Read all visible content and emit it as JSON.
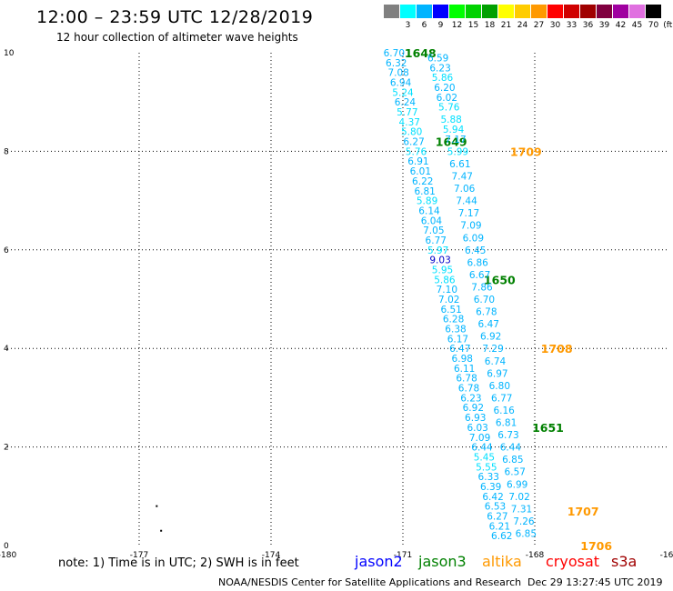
{
  "title": "12:00 – 23:59 UTC 12/28/2019",
  "subtitle": "12 hour collection of altimeter wave heights",
  "scale": {
    "unit": "(ft)",
    "bins": [
      {
        "label": "",
        "color": "#808080"
      },
      {
        "label": "3",
        "color": "#00ffff"
      },
      {
        "label": "6",
        "color": "#00b4ff"
      },
      {
        "label": "9",
        "color": "#0000ff"
      },
      {
        "label": "12",
        "color": "#00ff00"
      },
      {
        "label": "15",
        "color": "#00d200"
      },
      {
        "label": "18",
        "color": "#00a000"
      },
      {
        "label": "21",
        "color": "#ffff00"
      },
      {
        "label": "24",
        "color": "#ffcc00"
      },
      {
        "label": "27",
        "color": "#ff9900"
      },
      {
        "label": "30",
        "color": "#ff0000"
      },
      {
        "label": "33",
        "color": "#d00000"
      },
      {
        "label": "36",
        "color": "#a00000"
      },
      {
        "label": "39",
        "color": "#800040"
      },
      {
        "label": "42",
        "color": "#a000a0"
      },
      {
        "label": "45",
        "color": "#e070e0"
      },
      {
        "label": "70",
        "color": "#000000"
      }
    ]
  },
  "axes": {
    "x_ticks": [
      "-180",
      "-177",
      "-174",
      "-171",
      "-168",
      "-16"
    ],
    "y_ticks": [
      "0",
      "2",
      "4",
      "6",
      "8",
      "10"
    ],
    "lon_range": [
      -180,
      -165
    ],
    "lat_range": [
      0,
      10
    ],
    "grid": true
  },
  "note": "note: 1) Time is in UTC; 2) SWH is in feet",
  "legend": [
    {
      "name": "jason2",
      "color": "#0000ff"
    },
    {
      "name": "jason3",
      "color": "#008000"
    },
    {
      "name": "altika",
      "color": "#ff9900"
    },
    {
      "name": "cryosat",
      "color": "#ff0000"
    },
    {
      "name": "s3a",
      "color": "#a00000"
    }
  ],
  "credit": "NOAA/NESDIS Center for Satellite Applications and Research",
  "generated": "Dec 29 13:27:45 UTC 2019",
  "tracks": [
    {
      "satellite": "jason3",
      "time_labels": [
        {
          "text": "1648",
          "lon": -170.6,
          "lat": 10.0
        },
        {
          "text": "1649",
          "lon": -169.9,
          "lat": 8.2
        },
        {
          "text": "1650",
          "lon": -168.8,
          "lat": 5.4
        },
        {
          "text": "1651",
          "lon": -167.7,
          "lat": 2.4
        }
      ],
      "obs": [
        {
          "v": "6.70",
          "lon": -171.2,
          "lat": 10.0
        },
        {
          "v": "6.32",
          "lon": -171.15,
          "lat": 9.8
        },
        {
          "v": "7.08",
          "lon": -171.1,
          "lat": 9.6
        },
        {
          "v": "6.94",
          "lon": -171.05,
          "lat": 9.4
        },
        {
          "v": "5.24",
          "lon": -171.0,
          "lat": 9.2
        },
        {
          "v": "6.24",
          "lon": -170.95,
          "lat": 9.0
        },
        {
          "v": "5.77",
          "lon": -170.9,
          "lat": 8.8
        },
        {
          "v": "4.37",
          "lon": -170.85,
          "lat": 8.6
        },
        {
          "v": "5.80",
          "lon": -170.8,
          "lat": 8.4
        },
        {
          "v": "6.27",
          "lon": -170.75,
          "lat": 8.2
        },
        {
          "v": "5.76",
          "lon": -170.7,
          "lat": 8.0
        },
        {
          "v": "6.91",
          "lon": -170.65,
          "lat": 7.8
        },
        {
          "v": "6.01",
          "lon": -170.6,
          "lat": 7.6
        },
        {
          "v": "6.22",
          "lon": -170.55,
          "lat": 7.4
        },
        {
          "v": "6.81",
          "lon": -170.5,
          "lat": 7.2
        },
        {
          "v": "5.89",
          "lon": -170.45,
          "lat": 7.0
        },
        {
          "v": "6.14",
          "lon": -170.4,
          "lat": 6.8
        },
        {
          "v": "6.04",
          "lon": -170.35,
          "lat": 6.6
        },
        {
          "v": "7.05",
          "lon": -170.3,
          "lat": 6.4
        },
        {
          "v": "6.77",
          "lon": -170.25,
          "lat": 6.2
        },
        {
          "v": "5.97",
          "lon": -170.2,
          "lat": 6.0
        },
        {
          "v": "9.03",
          "lon": -170.15,
          "lat": 5.8
        },
        {
          "v": "5.95",
          "lon": -170.1,
          "lat": 5.6
        },
        {
          "v": "5.86",
          "lon": -170.05,
          "lat": 5.4
        },
        {
          "v": "7.10",
          "lon": -170.0,
          "lat": 5.2
        },
        {
          "v": "7.02",
          "lon": -169.95,
          "lat": 5.0
        },
        {
          "v": "6.51",
          "lon": -169.9,
          "lat": 4.8
        },
        {
          "v": "6.28",
          "lon": -169.85,
          "lat": 4.6
        },
        {
          "v": "6.38",
          "lon": -169.8,
          "lat": 4.4
        },
        {
          "v": "6.17",
          "lon": -169.75,
          "lat": 4.2
        },
        {
          "v": "6.47",
          "lon": -169.7,
          "lat": 4.0
        },
        {
          "v": "6.98",
          "lon": -169.65,
          "lat": 3.8
        },
        {
          "v": "6.11",
          "lon": -169.6,
          "lat": 3.6
        },
        {
          "v": "6.78",
          "lon": -169.55,
          "lat": 3.4
        },
        {
          "v": "6.78",
          "lon": -169.5,
          "lat": 3.2
        },
        {
          "v": "6.23",
          "lon": -169.45,
          "lat": 3.0
        },
        {
          "v": "6.92",
          "lon": -169.4,
          "lat": 2.8
        },
        {
          "v": "6.93",
          "lon": -169.35,
          "lat": 2.6
        },
        {
          "v": "6.03",
          "lon": -169.3,
          "lat": 2.4
        },
        {
          "v": "7.09",
          "lon": -169.25,
          "lat": 2.2
        },
        {
          "v": "6.44",
          "lon": -169.2,
          "lat": 2.0
        },
        {
          "v": "5.45",
          "lon": -169.15,
          "lat": 1.8
        },
        {
          "v": "5.55",
          "lon": -169.1,
          "lat": 1.6
        },
        {
          "v": "6.33",
          "lon": -169.05,
          "lat": 1.4
        },
        {
          "v": "6.39",
          "lon": -169.0,
          "lat": 1.2
        },
        {
          "v": "6.42",
          "lon": -168.95,
          "lat": 1.0
        },
        {
          "v": "6.53",
          "lon": -168.9,
          "lat": 0.8
        },
        {
          "v": "6.27",
          "lon": -168.85,
          "lat": 0.6
        },
        {
          "v": "6.21",
          "lon": -168.8,
          "lat": 0.4
        },
        {
          "v": "6.62",
          "lon": -168.75,
          "lat": 0.2
        }
      ]
    },
    {
      "satellite": "altika",
      "time_labels": [
        {
          "text": "1709",
          "lon": -168.2,
          "lat": 8.0
        },
        {
          "text": "1708",
          "lon": -167.5,
          "lat": 4.0
        },
        {
          "text": "1707",
          "lon": -166.9,
          "lat": 0.7
        },
        {
          "text": "1706",
          "lon": -166.6,
          "lat": 0.0
        }
      ],
      "obs": [
        {
          "v": "6.59",
          "lon": -170.2,
          "lat": 9.9
        },
        {
          "v": "6.23",
          "lon": -170.15,
          "lat": 9.7
        },
        {
          "v": "5.86",
          "lon": -170.1,
          "lat": 9.5
        },
        {
          "v": "6.20",
          "lon": -170.05,
          "lat": 9.3
        },
        {
          "v": "6.02",
          "lon": -170.0,
          "lat": 9.1
        },
        {
          "v": "5.76",
          "lon": -169.95,
          "lat": 8.9
        },
        {
          "v": "5.88",
          "lon": -169.9,
          "lat": 8.65
        },
        {
          "v": "5.94",
          "lon": -169.85,
          "lat": 8.45
        },
        {
          "v": "7.17",
          "lon": -169.8,
          "lat": 8.25
        },
        {
          "v": "5.99",
          "lon": -169.75,
          "lat": 8.0
        },
        {
          "v": "6.61",
          "lon": -169.7,
          "lat": 7.75
        },
        {
          "v": "7.47",
          "lon": -169.65,
          "lat": 7.5
        },
        {
          "v": "7.06",
          "lon": -169.6,
          "lat": 7.25
        },
        {
          "v": "7.44",
          "lon": -169.55,
          "lat": 7.0
        },
        {
          "v": "7.17",
          "lon": -169.5,
          "lat": 6.75
        },
        {
          "v": "7.09",
          "lon": -169.45,
          "lat": 6.5
        },
        {
          "v": "6.09",
          "lon": -169.4,
          "lat": 6.25
        },
        {
          "v": "6.45",
          "lon": -169.35,
          "lat": 6.0
        },
        {
          "v": "6.86",
          "lon": -169.3,
          "lat": 5.75
        },
        {
          "v": "6.67",
          "lon": -169.25,
          "lat": 5.5
        },
        {
          "v": "7.86",
          "lon": -169.2,
          "lat": 5.25
        },
        {
          "v": "6.70",
          "lon": -169.15,
          "lat": 5.0
        },
        {
          "v": "6.78",
          "lon": -169.1,
          "lat": 4.75
        },
        {
          "v": "6.47",
          "lon": -169.05,
          "lat": 4.5
        },
        {
          "v": "6.92",
          "lon": -169.0,
          "lat": 4.25
        },
        {
          "v": "7.29",
          "lon": -168.95,
          "lat": 4.0
        },
        {
          "v": "6.74",
          "lon": -168.9,
          "lat": 3.75
        },
        {
          "v": "6.97",
          "lon": -168.85,
          "lat": 3.5
        },
        {
          "v": "6.80",
          "lon": -168.8,
          "lat": 3.25
        },
        {
          "v": "6.77",
          "lon": -168.75,
          "lat": 3.0
        },
        {
          "v": "6.16",
          "lon": -168.7,
          "lat": 2.75
        },
        {
          "v": "6.81",
          "lon": -168.65,
          "lat": 2.5
        },
        {
          "v": "6.73",
          "lon": -168.6,
          "lat": 2.25
        },
        {
          "v": "6.44",
          "lon": -168.55,
          "lat": 2.0
        },
        {
          "v": "6.85",
          "lon": -168.5,
          "lat": 1.75
        },
        {
          "v": "6.57",
          "lon": -168.45,
          "lat": 1.5
        },
        {
          "v": "6.99",
          "lon": -168.4,
          "lat": 1.25
        },
        {
          "v": "7.02",
          "lon": -168.35,
          "lat": 1.0
        },
        {
          "v": "7.31",
          "lon": -168.3,
          "lat": 0.75
        },
        {
          "v": "7.26",
          "lon": -168.25,
          "lat": 0.5
        },
        {
          "v": "6.85",
          "lon": -168.2,
          "lat": 0.25
        }
      ]
    }
  ],
  "land_points": [
    {
      "lon": -176.6,
      "lat": 0.8
    },
    {
      "lon": -176.5,
      "lat": 0.3
    }
  ]
}
